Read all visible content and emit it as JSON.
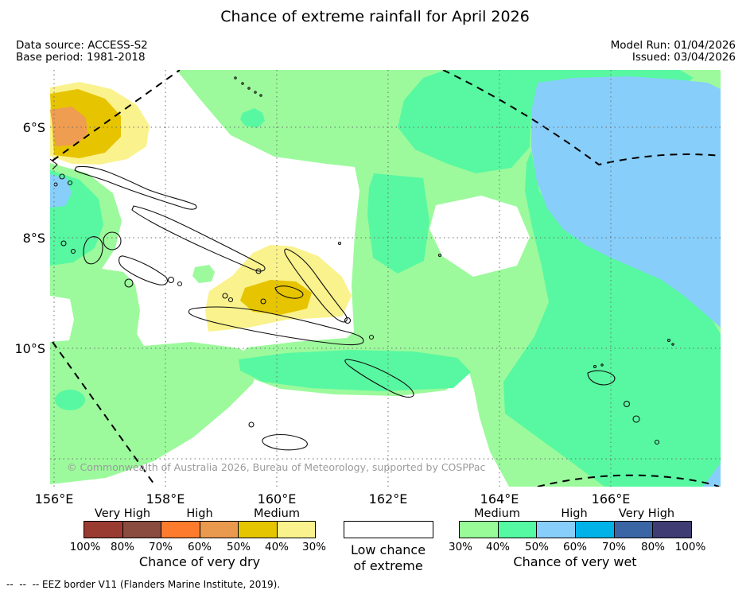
{
  "title": "Chance of extreme rainfall for April 2026",
  "header": {
    "data_source": "Data source: ACCESS-S2",
    "base_period": "Base period: 1981-2018",
    "model_run": "Model Run: 01/04/2026",
    "issued": "Issued: 03/04/2026"
  },
  "map": {
    "lat_labels": [
      "6°S",
      "8°S",
      "10°S"
    ],
    "lon_labels": [
      "156°E",
      "158°E",
      "160°E",
      "162°E",
      "164°E",
      "166°E"
    ],
    "copyright": "© Commonwealth of Australia 2026, Bureau of Meteorology, supported by COSPPac",
    "region_legend_meaning": {
      "white": "Low chance of extreme",
      "pale_yellow": "30-40% chance of very dry",
      "gold": "40-50% chance of very dry",
      "orange_tan": "50-60% chance of very dry",
      "light_green": "30-40% chance of very wet",
      "medium_green": "40-50% chance of very wet",
      "light_blue": "50-60% chance of very wet"
    }
  },
  "colors": {
    "light_green": "#9CFA9C",
    "medium_green": "#57F8A1",
    "light_blue": "#87CEFA",
    "pale_yellow": "#FAF28C",
    "gold": "#E6C400",
    "orange_tan": "#EF9D51"
  },
  "legend_dry": {
    "labels": [
      "Very High",
      "High",
      "Medium"
    ],
    "ticks": [
      "100%",
      "80%",
      "70%",
      "60%",
      "50%",
      "40%",
      "30%"
    ],
    "colors": [
      "#9A3B32",
      "#8A4C3F",
      "#FC7B2C",
      "#EA9A4E",
      "#E5C500",
      "#FAF28C"
    ],
    "caption": "Chance of very dry"
  },
  "legend_low": {
    "line1": "Low chance",
    "line2": "of extreme"
  },
  "legend_wet": {
    "labels": [
      "Medium",
      "High",
      "Very High"
    ],
    "ticks": [
      "30%",
      "40%",
      "50%",
      "60%",
      "70%",
      "80%",
      "100%"
    ],
    "colors": [
      "#98FB98",
      "#54F9A2",
      "#87CEFA",
      "#00B2E8",
      "#3B66A6",
      "#3E3C72"
    ],
    "caption": "Chance of very wet"
  },
  "footer": {
    "eez_note": "--  --  -- EEZ border V11 (Flanders Marine Institute, 2019)."
  }
}
